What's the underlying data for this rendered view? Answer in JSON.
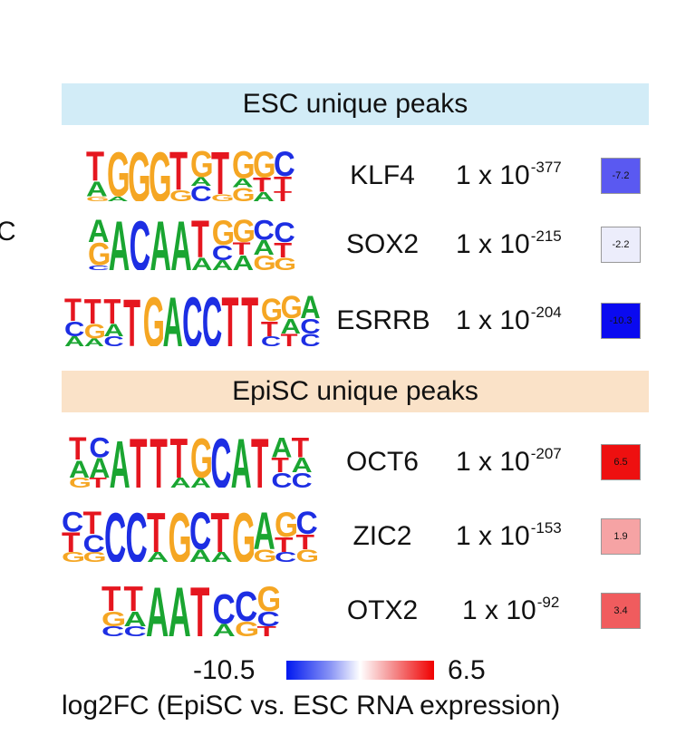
{
  "edge_letter": "C",
  "sections": [
    {
      "header": "ESC unique peaks",
      "rows": [
        {
          "gene": "KLF4",
          "p_base": "1 x 10",
          "p_exp": "-377",
          "log2fc": -7.2,
          "log2fc_label": "-7.2",
          "fc_color": "#5a59f1",
          "fc_text_color": "#111111",
          "motif": [
            [
              [
                "G",
                0.15
              ],
              [
                "A",
                0.45
              ],
              [
                "T",
                0.9
              ]
            ],
            [
              [
                "A",
                0.1
              ],
              [
                "G",
                0.9
              ]
            ],
            [
              [
                "G",
                1.0
              ]
            ],
            [
              [
                "G",
                1.0
              ]
            ],
            [
              [
                "G",
                0.25
              ],
              [
                "T",
                0.85
              ]
            ],
            [
              [
                "C",
                0.35
              ],
              [
                "A",
                0.2
              ],
              [
                "G",
                0.6
              ]
            ],
            [
              [
                "G",
                0.15
              ],
              [
                "T",
                0.9
              ]
            ],
            [
              [
                "G",
                0.3
              ],
              [
                "A",
                0.2
              ],
              [
                "G",
                0.6
              ]
            ],
            [
              [
                "A",
                0.2
              ],
              [
                "T",
                0.3
              ],
              [
                "G",
                0.55
              ]
            ],
            [
              [
                "T",
                0.2
              ],
              [
                "T",
                0.3
              ],
              [
                "C",
                0.5
              ]
            ]
          ]
        },
        {
          "gene": "SOX2",
          "p_base": "1 x 10",
          "p_exp": "-215",
          "log2fc": -2.2,
          "log2fc_label": "-2.2",
          "fc_color": "#ecedfb",
          "fc_text_color": "#111111",
          "motif": [
            [
              [
                "C",
                0.1
              ],
              [
                "G",
                0.45
              ],
              [
                "A",
                0.45
              ]
            ],
            [
              [
                "A",
                1.0
              ]
            ],
            [
              [
                "C",
                1.0
              ]
            ],
            [
              [
                "A",
                1.0
              ]
            ],
            [
              [
                "A",
                1.0
              ]
            ],
            [
              [
                "A",
                0.25
              ],
              [
                "T",
                0.75
              ]
            ],
            [
              [
                "A",
                0.2
              ],
              [
                "C",
                0.3
              ],
              [
                "G",
                0.5
              ]
            ],
            [
              [
                "A",
                0.3
              ],
              [
                "T",
                0.25
              ],
              [
                "G",
                0.45
              ]
            ],
            [
              [
                "G",
                0.3
              ],
              [
                "A",
                0.3
              ],
              [
                "C",
                0.4
              ]
            ],
            [
              [
                "G",
                0.25
              ],
              [
                "T",
                0.3
              ],
              [
                "C",
                0.4
              ]
            ]
          ]
        },
        {
          "gene": "ESRRB",
          "p_base": "1 x 10",
          "p_exp": "-204",
          "log2fc": -10.3,
          "log2fc_label": "-10.3",
          "fc_color": "#0a0af0",
          "fc_text_color": "#111111",
          "motif": [
            [
              [
                "A",
                0.2
              ],
              [
                "C",
                0.3
              ],
              [
                "T",
                0.45
              ]
            ],
            [
              [
                "A",
                0.15
              ],
              [
                "G",
                0.3
              ],
              [
                "T",
                0.5
              ]
            ],
            [
              [
                "C",
                0.2
              ],
              [
                "A",
                0.25
              ],
              [
                "T",
                0.5
              ]
            ],
            [
              [
                "T",
                0.95
              ]
            ],
            [
              [
                "G",
                1.0
              ]
            ],
            [
              [
                "A",
                1.0
              ]
            ],
            [
              [
                "C",
                1.0
              ]
            ],
            [
              [
                "C",
                1.0
              ]
            ],
            [
              [
                "T",
                1.0
              ]
            ],
            [
              [
                "T",
                1.0
              ]
            ],
            [
              [
                "C",
                0.2
              ],
              [
                "T",
                0.3
              ],
              [
                "G",
                0.45
              ]
            ],
            [
              [
                "T",
                0.25
              ],
              [
                "A",
                0.3
              ],
              [
                "G",
                0.45
              ]
            ],
            [
              [
                "C",
                0.25
              ],
              [
                "C",
                0.3
              ],
              [
                "A",
                0.45
              ]
            ]
          ]
        }
      ]
    },
    {
      "header": "EpiSC unique peaks",
      "rows": [
        {
          "gene": "OCT6",
          "p_base": "1 x 10",
          "p_exp": "-207",
          "log2fc": 6.5,
          "log2fc_label": "6.5",
          "fc_color": "#ee1010",
          "fc_text_color": "#111111",
          "motif": [
            [
              [
                "G",
                0.2
              ],
              [
                "A",
                0.35
              ],
              [
                "T",
                0.45
              ]
            ],
            [
              [
                "T",
                0.2
              ],
              [
                "A",
                0.4
              ],
              [
                "C",
                0.4
              ]
            ],
            [
              [
                "A",
                0.95
              ]
            ],
            [
              [
                "T",
                1.0
              ]
            ],
            [
              [
                "T",
                1.0
              ]
            ],
            [
              [
                "A",
                0.2
              ],
              [
                "T",
                0.8
              ]
            ],
            [
              [
                "A",
                0.2
              ],
              [
                "G",
                0.8
              ]
            ],
            [
              [
                "C",
                1.0
              ]
            ],
            [
              [
                "A",
                1.0
              ]
            ],
            [
              [
                "T",
                1.0
              ]
            ],
            [
              [
                "C",
                0.3
              ],
              [
                "T",
                0.3
              ],
              [
                "A",
                0.4
              ]
            ],
            [
              [
                "C",
                0.3
              ],
              [
                "A",
                0.3
              ],
              [
                "T",
                0.4
              ]
            ]
          ]
        },
        {
          "gene": "ZIC2",
          "p_base": "1 x 10",
          "p_exp": "-153",
          "log2fc": 1.9,
          "log2fc_label": "1.9",
          "fc_color": "#f6a3a4",
          "fc_text_color": "#111111",
          "motif": [
            [
              [
                "G",
                0.2
              ],
              [
                "T",
                0.4
              ],
              [
                "C",
                0.4
              ]
            ],
            [
              [
                "G",
                0.2
              ],
              [
                "C",
                0.35
              ],
              [
                "T",
                0.45
              ]
            ],
            [
              [
                "C",
                1.0
              ]
            ],
            [
              [
                "C",
                1.0
              ]
            ],
            [
              [
                "A",
                0.2
              ],
              [
                "T",
                0.8
              ]
            ],
            [
              [
                "G",
                1.0
              ]
            ],
            [
              [
                "A",
                0.25
              ],
              [
                "C",
                0.75
              ]
            ],
            [
              [
                "A",
                0.2
              ],
              [
                "T",
                0.8
              ]
            ],
            [
              [
                "G",
                1.0
              ]
            ],
            [
              [
                "G",
                0.25
              ],
              [
                "A",
                0.75
              ]
            ],
            [
              [
                "C",
                0.2
              ],
              [
                "T",
                0.3
              ],
              [
                "G",
                0.5
              ]
            ],
            [
              [
                "G",
                0.25
              ],
              [
                "T",
                0.3
              ],
              [
                "C",
                0.45
              ]
            ]
          ]
        },
        {
          "gene": "OTX2",
          "p_base": "1 x 10",
          "p_exp": "-92",
          "log2fc": 3.4,
          "log2fc_label": "3.4",
          "fc_color": "#f05c5e",
          "fc_text_color": "#111111",
          "motif": [
            [
              [
                "C",
                0.2
              ],
              [
                "G",
                0.3
              ],
              [
                "T",
                0.5
              ]
            ],
            [
              [
                "C",
                0.2
              ],
              [
                "A",
                0.3
              ],
              [
                "T",
                0.5
              ]
            ],
            [
              [
                "A",
                1.0
              ]
            ],
            [
              [
                "A",
                1.0
              ]
            ],
            [
              [
                "T",
                1.0
              ]
            ],
            [
              [
                "A",
                0.25
              ],
              [
                "C",
                0.6
              ]
            ],
            [
              [
                "G",
                0.3
              ],
              [
                "C",
                0.6
              ]
            ],
            [
              [
                "T",
                0.2
              ],
              [
                "C",
                0.3
              ],
              [
                "G",
                0.5
              ]
            ]
          ]
        }
      ]
    }
  ],
  "colorbar": {
    "min_label": "-10.5",
    "max_label": "6.5",
    "min": -10.5,
    "max": 6.5,
    "label": "log2FC (EpiSC vs. ESC RNA expression)",
    "low_color": "#0018f0",
    "mid_color": "#ffffff",
    "high_color": "#f00000"
  },
  "nucleotide_colors": {
    "A": "#1aa531",
    "C": "#1d2ee3",
    "G": "#f5a623",
    "T": "#e5161f"
  }
}
